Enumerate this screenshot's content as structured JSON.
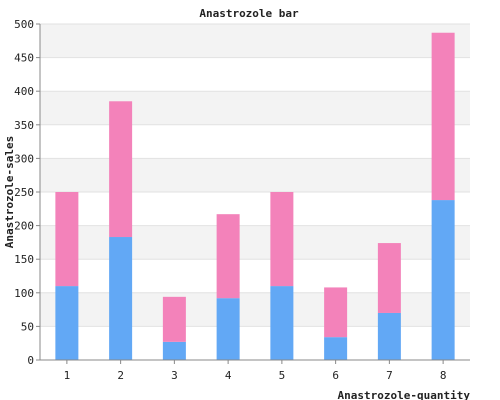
{
  "chart_data": {
    "type": "bar",
    "stacked": true,
    "title": "Anastrozole bar",
    "xlabel": "Anastrozole-quantity",
    "ylabel": "Anastrozole-sales",
    "categories": [
      "1",
      "2",
      "3",
      "4",
      "5",
      "6",
      "7",
      "8"
    ],
    "series": [
      {
        "color": "#62a8f5",
        "values": [
          110,
          183,
          27,
          92,
          110,
          34,
          70,
          238
        ]
      },
      {
        "color": "#f382ba",
        "values": [
          140,
          202,
          67,
          125,
          140,
          74,
          104,
          249
        ]
      }
    ],
    "ylim": [
      0,
      500
    ],
    "yticks": [
      0,
      50,
      100,
      150,
      200,
      250,
      300,
      350,
      400,
      450,
      500
    ],
    "grid": true,
    "background_bands": true,
    "legend": "none"
  }
}
